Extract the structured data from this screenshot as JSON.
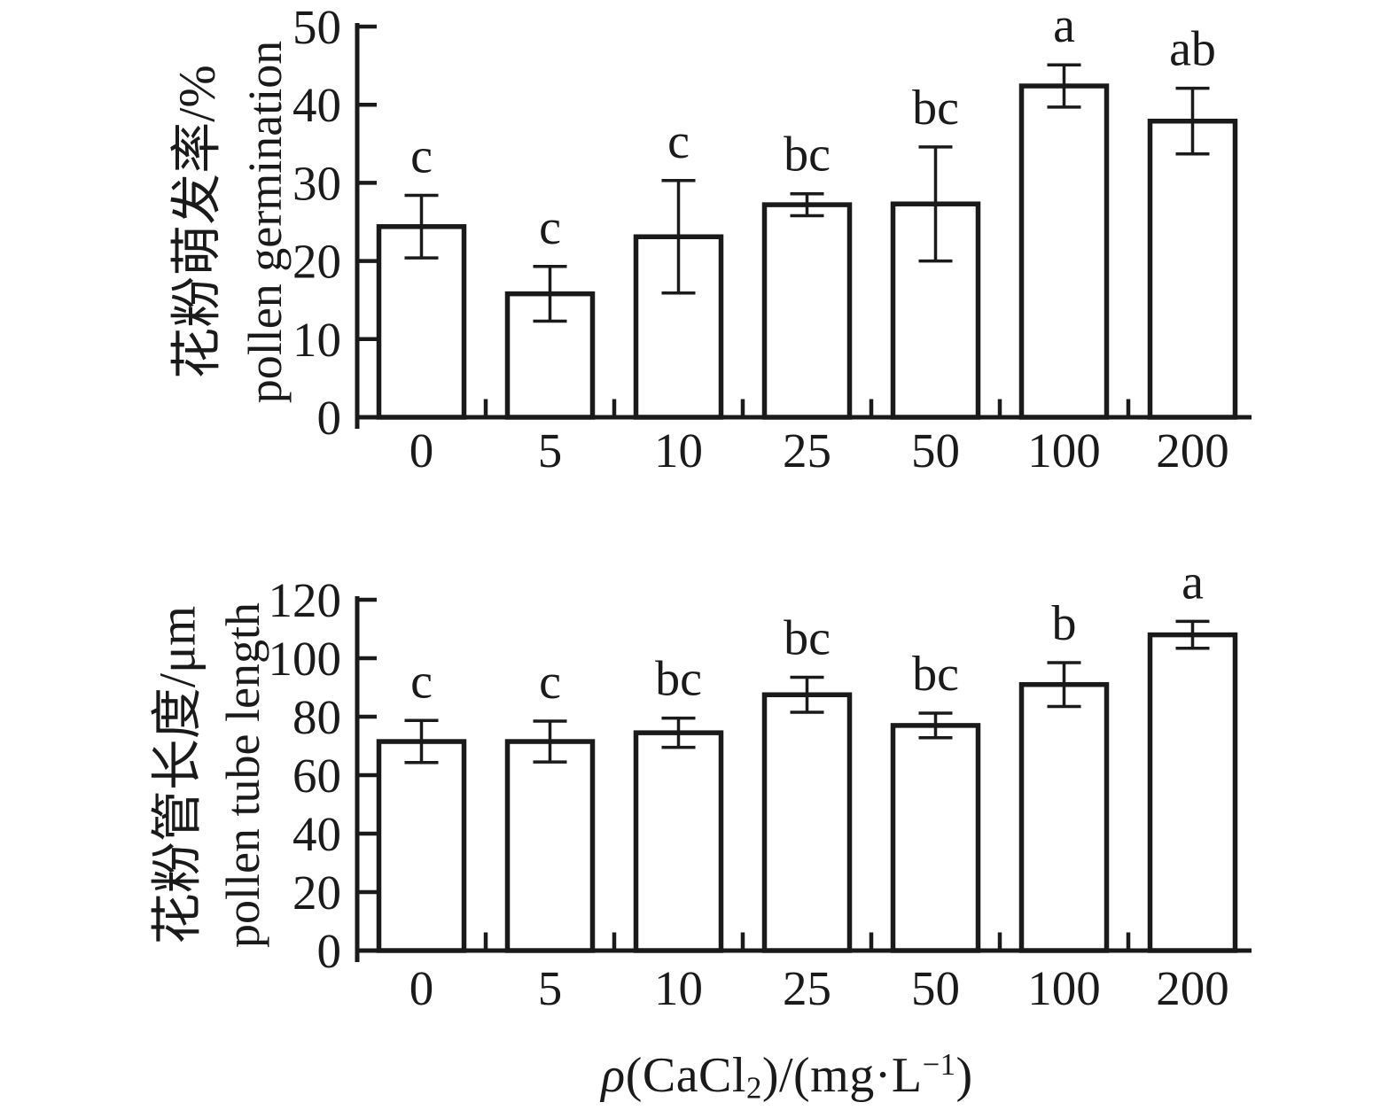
{
  "figure": {
    "background": "#ffffff",
    "ink": "#1a1a1a"
  },
  "xaxis_title": {
    "rho": "ρ",
    "p1": "(CaCl",
    "sub": "2",
    "p2": ")/(mg·L",
    "sup": "−1",
    "p3": ")"
  },
  "chart_data": [
    {
      "type": "bar",
      "panel": "top",
      "title": "",
      "ylabel_zh": "花粉萌发率/%",
      "ylabel_en": "pollen germination",
      "categories": [
        "0",
        "5",
        "10",
        "25",
        "50",
        "100",
        "200"
      ],
      "values": [
        24.4,
        15.8,
        23.1,
        27.2,
        27.3,
        42.4,
        37.9
      ],
      "errors": [
        4.0,
        3.5,
        7.2,
        1.4,
        7.3,
        2.7,
        4.2
      ],
      "sig_letters": [
        "c",
        "c",
        "c",
        "bc",
        "bc",
        "a",
        "ab"
      ],
      "ylim": [
        0,
        50
      ],
      "yticks": [
        0,
        10,
        20,
        30,
        40,
        50
      ],
      "grid": false,
      "legend_position": "none",
      "bar_fill": "#ffffff",
      "bar_stroke": "#1a1a1a"
    },
    {
      "type": "bar",
      "panel": "bottom",
      "title": "",
      "ylabel_zh": "花粉管长度/μm",
      "ylabel_en": "pollen tube length",
      "categories": [
        "0",
        "5",
        "10",
        "25",
        "50",
        "100",
        "200"
      ],
      "values": [
        71.5,
        71.5,
        74.5,
        87.5,
        77.0,
        91.0,
        108.0
      ],
      "errors": [
        7.2,
        7.0,
        5.0,
        6.0,
        4.2,
        7.5,
        4.6
      ],
      "sig_letters": [
        "c",
        "c",
        "bc",
        "bc",
        "bc",
        "b",
        "a"
      ],
      "ylim": [
        0,
        120
      ],
      "yticks": [
        0,
        20,
        40,
        60,
        80,
        100,
        120
      ],
      "grid": false,
      "legend_position": "none",
      "bar_fill": "#ffffff",
      "bar_stroke": "#1a1a1a"
    }
  ]
}
